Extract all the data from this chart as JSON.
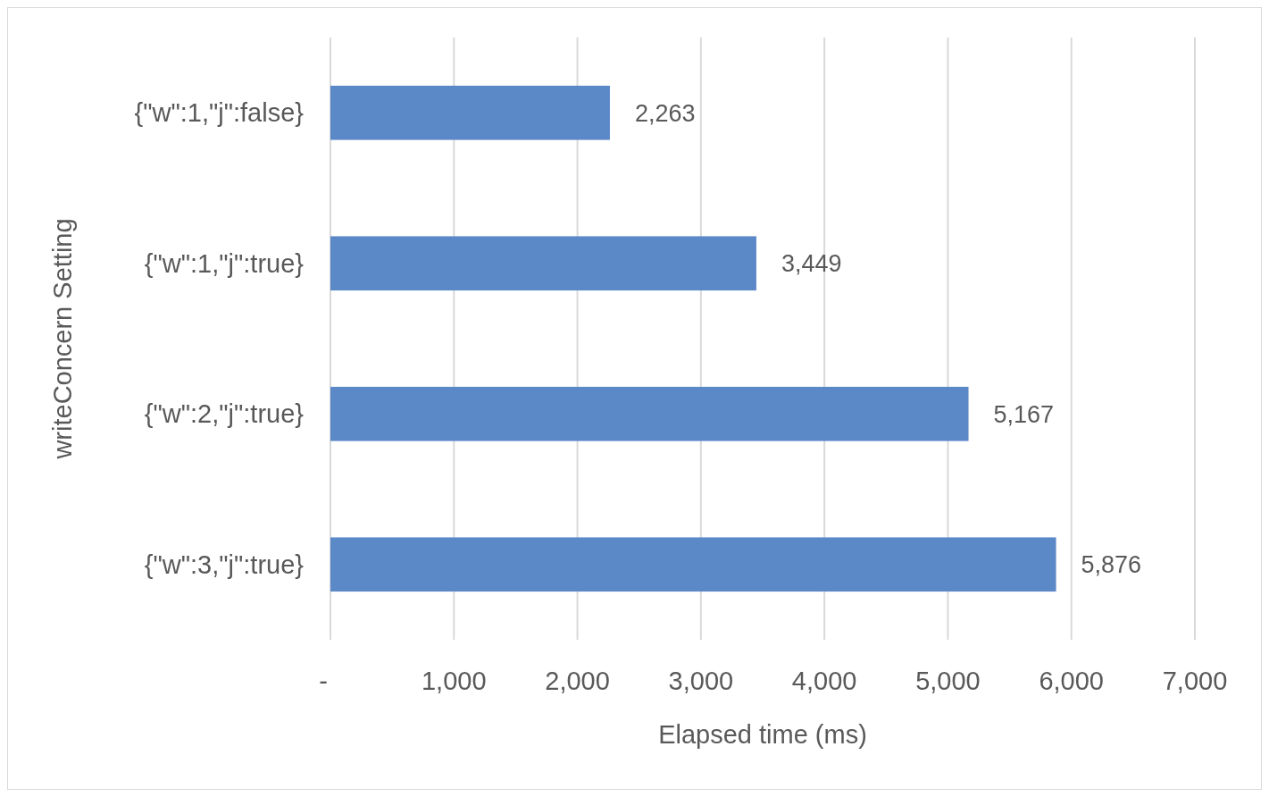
{
  "chart_data": {
    "type": "bar",
    "orientation": "horizontal",
    "xlabel": "Elapsed time (ms)",
    "ylabel": "writeConcern Setting",
    "categories": [
      "{\"w\":1,\"j\":false}",
      "{\"w\":1,\"j\":true}",
      "{\"w\":2,\"j\":true}",
      "{\"w\":3,\"j\":true}"
    ],
    "values": [
      2263,
      3449,
      5167,
      5876
    ],
    "value_labels": [
      "2,263",
      "3,449",
      "5,167",
      "5,876"
    ],
    "color": "#5b88c6",
    "xlim": [
      0,
      7000
    ],
    "xticks": [
      {
        "value": 0,
        "label": "-"
      },
      {
        "value": 1000,
        "label": "1,000"
      },
      {
        "value": 2000,
        "label": "2,000"
      },
      {
        "value": 3000,
        "label": "3,000"
      },
      {
        "value": 4000,
        "label": "4,000"
      },
      {
        "value": 5000,
        "label": "5,000"
      },
      {
        "value": 6000,
        "label": "6,000"
      },
      {
        "value": 7000,
        "label": "7,000"
      }
    ],
    "grid": "x"
  }
}
